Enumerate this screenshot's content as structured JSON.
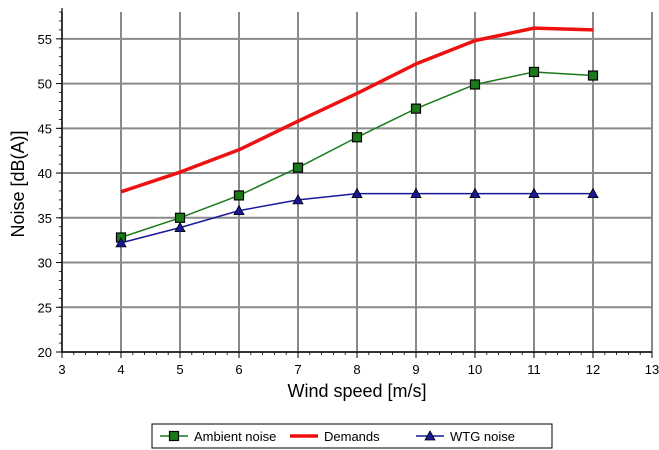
{
  "chart_data": {
    "type": "line",
    "title": "",
    "xlabel": "Wind speed [m/s]",
    "ylabel": "Noise [dB(A)]",
    "xlim": [
      3,
      13
    ],
    "ylim": [
      20,
      58
    ],
    "x_ticks": [
      3,
      4,
      5,
      6,
      7,
      8,
      9,
      10,
      11,
      12,
      13
    ],
    "y_ticks": [
      20,
      25,
      30,
      35,
      40,
      45,
      50,
      55
    ],
    "grid": true,
    "legend_position": "bottom",
    "x": [
      4,
      5,
      6,
      7,
      8,
      9,
      10,
      11,
      12
    ],
    "series": [
      {
        "name": "Ambient noise",
        "color": "#1a7a1a",
        "marker": "square",
        "line_width": 1.5,
        "values": [
          32.8,
          35.0,
          37.5,
          40.6,
          44.0,
          47.2,
          49.9,
          51.3,
          50.9
        ]
      },
      {
        "name": "Demands",
        "color": "#ee1111",
        "marker": "none",
        "line_width": 3.5,
        "values": [
          37.9,
          40.1,
          42.6,
          45.8,
          48.9,
          52.2,
          54.8,
          56.2,
          56.0
        ]
      },
      {
        "name": "WTG noise",
        "color": "#1a1a99",
        "marker": "triangle",
        "line_width": 1.5,
        "values": [
          32.2,
          33.9,
          35.8,
          37.0,
          37.7,
          37.7,
          37.7,
          37.7,
          37.7
        ]
      }
    ]
  }
}
